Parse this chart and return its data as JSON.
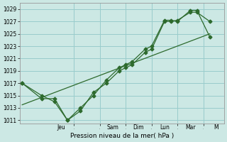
{
  "xlabel": "Pression niveau de la mer( hPa )",
  "bg_color": "#cce8e4",
  "grid_color": "#99cccc",
  "line_color": "#2d6a2d",
  "ylim": [
    1010.5,
    1030
  ],
  "yticks": [
    1011,
    1013,
    1015,
    1017,
    1019,
    1021,
    1023,
    1025,
    1027,
    1029
  ],
  "x_day_labels": [
    "Jeu",
    "Sam",
    "Dim",
    "Lun",
    "Mar",
    "M"
  ],
  "x_day_positions": [
    1.5,
    3.5,
    4.5,
    5.5,
    6.5,
    7.5
  ],
  "x_vlines": [
    2,
    3,
    4,
    5,
    6,
    7
  ],
  "series1_x": [
    0,
    0.75,
    1.25,
    1.75,
    2.25,
    2.75,
    3.25,
    3.75,
    4.0,
    4.25,
    4.75,
    5.0,
    5.5,
    5.75,
    6.0,
    6.5,
    6.75,
    7.25
  ],
  "series1_y": [
    1017,
    1014.5,
    1014.5,
    1011.0,
    1012.5,
    1015.5,
    1017.0,
    1019.0,
    1019.5,
    1020.0,
    1022.0,
    1022.5,
    1027.0,
    1027.0,
    1027.2,
    1028.5,
    1028.5,
    1027.0
  ],
  "series2_x": [
    0,
    0.75,
    1.25,
    1.75,
    2.25,
    2.75,
    3.25,
    3.75,
    4.0,
    4.25,
    4.75,
    5.0,
    5.5,
    5.75,
    6.0,
    6.5,
    6.75,
    7.25
  ],
  "series2_y": [
    1017,
    1015.0,
    1014.0,
    1011.0,
    1013.0,
    1015.0,
    1017.5,
    1019.5,
    1020.0,
    1020.5,
    1022.5,
    1023.0,
    1027.2,
    1027.2,
    1027.0,
    1028.8,
    1028.8,
    1024.5
  ],
  "trend_x": [
    0,
    7.25
  ],
  "trend_y": [
    1013.5,
    1025.0
  ],
  "x_min": -0.1,
  "x_max": 7.8
}
